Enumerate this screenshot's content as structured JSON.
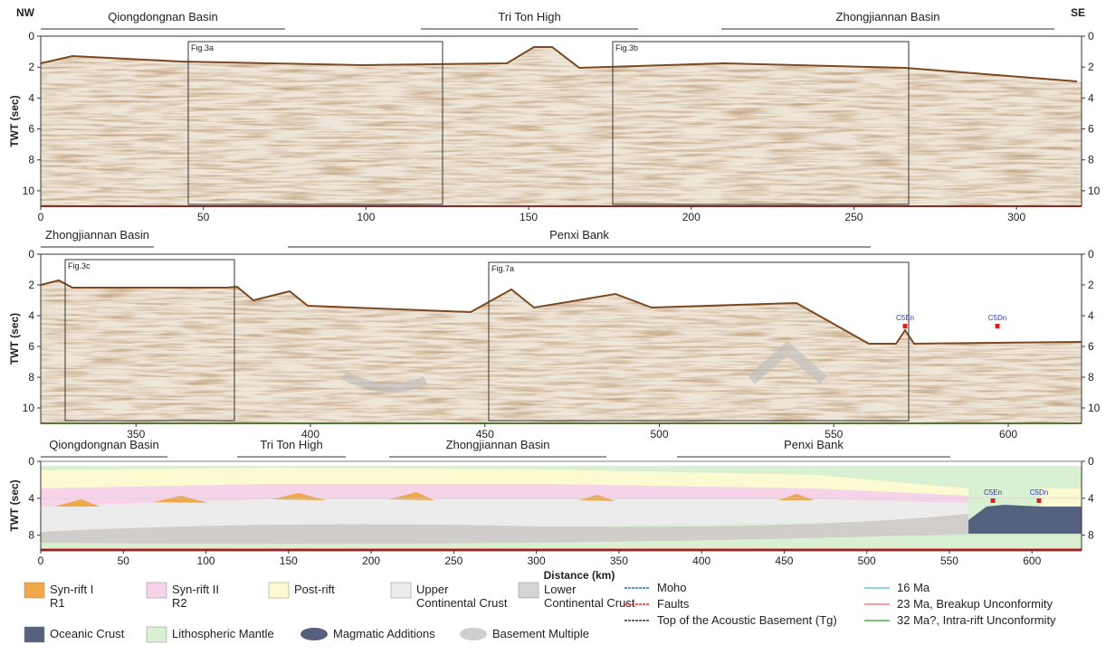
{
  "panel1": {
    "left_label": "NW",
    "right_label": "SE",
    "regions": [
      "Qiongdongnan Basin",
      "Tri Ton High",
      "Zhongjiannan Basin"
    ],
    "boxes": [
      "Fig.3a",
      "Fig.3b"
    ],
    "y_axis_label": "TWT (sec)",
    "ylim": [
      0,
      11
    ],
    "yticks": [
      0,
      2,
      4,
      6,
      8,
      10
    ],
    "xlim": [
      0,
      320
    ],
    "xticks": [
      0,
      50,
      100,
      150,
      200,
      250,
      300
    ]
  },
  "panel2": {
    "regions": [
      "Zhongjiannan Basin",
      "Penxi Bank"
    ],
    "boxes": [
      "Fig.3c",
      "Fig.7a"
    ],
    "markers": [
      "C5En",
      "C5Dn"
    ],
    "y_axis_label": "TWT (sec)",
    "ylim": [
      0,
      11
    ],
    "yticks": [
      0,
      2,
      4,
      6,
      8,
      10
    ],
    "xlim": [
      322.7,
      621
    ],
    "xticks": [
      350,
      400,
      450,
      500,
      550,
      600
    ]
  },
  "panel3": {
    "regions": [
      "Qiongdongnan Basin",
      "Tri Ton High",
      "Zhongjiannan Basin",
      "Penxi Bank"
    ],
    "markers": [
      "C5En",
      "C5Dn"
    ],
    "y_axis_label": "TWT (sec)",
    "ylim": [
      0,
      9.6
    ],
    "yticks": [
      0,
      4,
      8
    ],
    "xlim": [
      0,
      630
    ],
    "xticks": [
      0,
      50,
      100,
      150,
      200,
      250,
      300,
      350,
      400,
      450,
      500,
      550,
      600
    ],
    "x_axis_label": "Distance (km)"
  },
  "legend": {
    "units": [
      {
        "lines": [
          "Syn-rift I",
          "R1"
        ],
        "color": "#f0a84a"
      },
      {
        "lines": [
          "Syn-rift II",
          "R2"
        ],
        "color": "#f7d3ea"
      },
      {
        "lines": [
          "Post-rift"
        ],
        "color": "#fbfad0"
      },
      {
        "lines": [
          "Upper",
          "Continental Crust"
        ],
        "color": "#ececec"
      },
      {
        "lines": [
          "Lower",
          "Continental Crust"
        ],
        "color": "#d8d4d2"
      },
      {
        "lines": [
          "Oceanic Crust"
        ],
        "color": "#56607f"
      },
      {
        "lines": [
          "Lithospheric Mantle"
        ],
        "color": "#d9f0d3"
      },
      {
        "lines": [
          "Magmatic Additions"
        ],
        "color": "#56607f"
      },
      {
        "lines": [
          "Basement Multiple"
        ],
        "color": "#cfcfcf"
      }
    ],
    "line_items": [
      {
        "label": "Moho",
        "color": "#2b6cb0"
      },
      {
        "label": "Faults",
        "color": "#e03030"
      },
      {
        "label": "Top of the Acoustic Basement (Tg)",
        "color": "#333333"
      },
      {
        "label": "16 Ma",
        "color": "#6cc6e6"
      },
      {
        "label": "23 Ma, Breakup Unconformity",
        "color": "#e88080"
      },
      {
        "label": "32 Ma?, Intra-rift Unconformity",
        "color": "#4caf50"
      }
    ]
  }
}
